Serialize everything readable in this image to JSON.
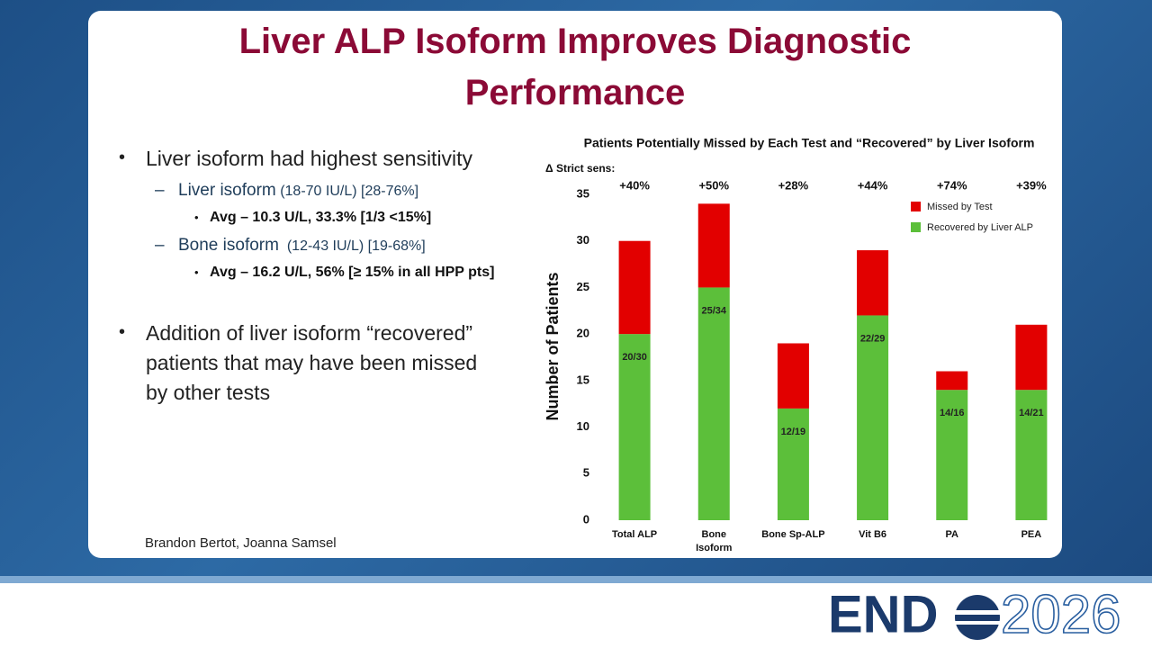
{
  "slide": {
    "title_lines": [
      "Liver ALP Isoform Improves Diagnostic",
      "Performance"
    ],
    "bullet1": "Liver isoform had highest sensitivity",
    "sub1_name": "Liver isoform",
    "sub1_detail": "(18-70 IU/L) [28-76%]",
    "sub1_avg": "Avg – 10.3 U/L, 33.3% [1/3 <15%]",
    "sub2_name": "Bone isoform",
    "sub2_detail": "(12-43 IU/L) [19-68%]",
    "sub2_avg": "Avg – 16.2 U/L, 56% [≥ 15% in all HPP pts]",
    "bullet2_lines": [
      "Addition of liver isoform “recovered”",
      "patients that may have been missed",
      "by other tests"
    ],
    "author": "Brandon Bertot, Joanna Samsel",
    "logo_left": "END",
    "logo_right": "2026"
  },
  "chart_data": {
    "type": "stacked_bar",
    "title": "Patients Potentially Missed by Each Test and “Recovered” by Liver Isoform",
    "y_label": "Number of Patients",
    "delta_title": "Δ Strict sens:",
    "deltas": [
      "+40%",
      "+50%",
      "+28%",
      "+44%",
      "+74%",
      "+39%"
    ],
    "categories": [
      "Total ALP",
      "Bone\nIsoform",
      "Bone Sp-ALP",
      "Vit B6",
      "PA",
      "PEA"
    ],
    "series": [
      {
        "name": "Recovered by Liver ALP",
        "color": "#5cbf3a",
        "values": [
          20,
          25,
          12,
          22,
          14,
          14
        ],
        "value_labels": [
          "20/30",
          "25/34",
          "12/19",
          "22/29",
          "14/16",
          "14/21"
        ]
      },
      {
        "name": "Missed by Test",
        "color": "#e20000",
        "values": [
          10,
          9,
          7,
          7,
          2,
          7
        ]
      }
    ],
    "ylim": [
      0,
      35
    ],
    "yticks": [
      0,
      5,
      10,
      15,
      20,
      25,
      30,
      35
    ],
    "grid": false,
    "legend": "top-right"
  }
}
